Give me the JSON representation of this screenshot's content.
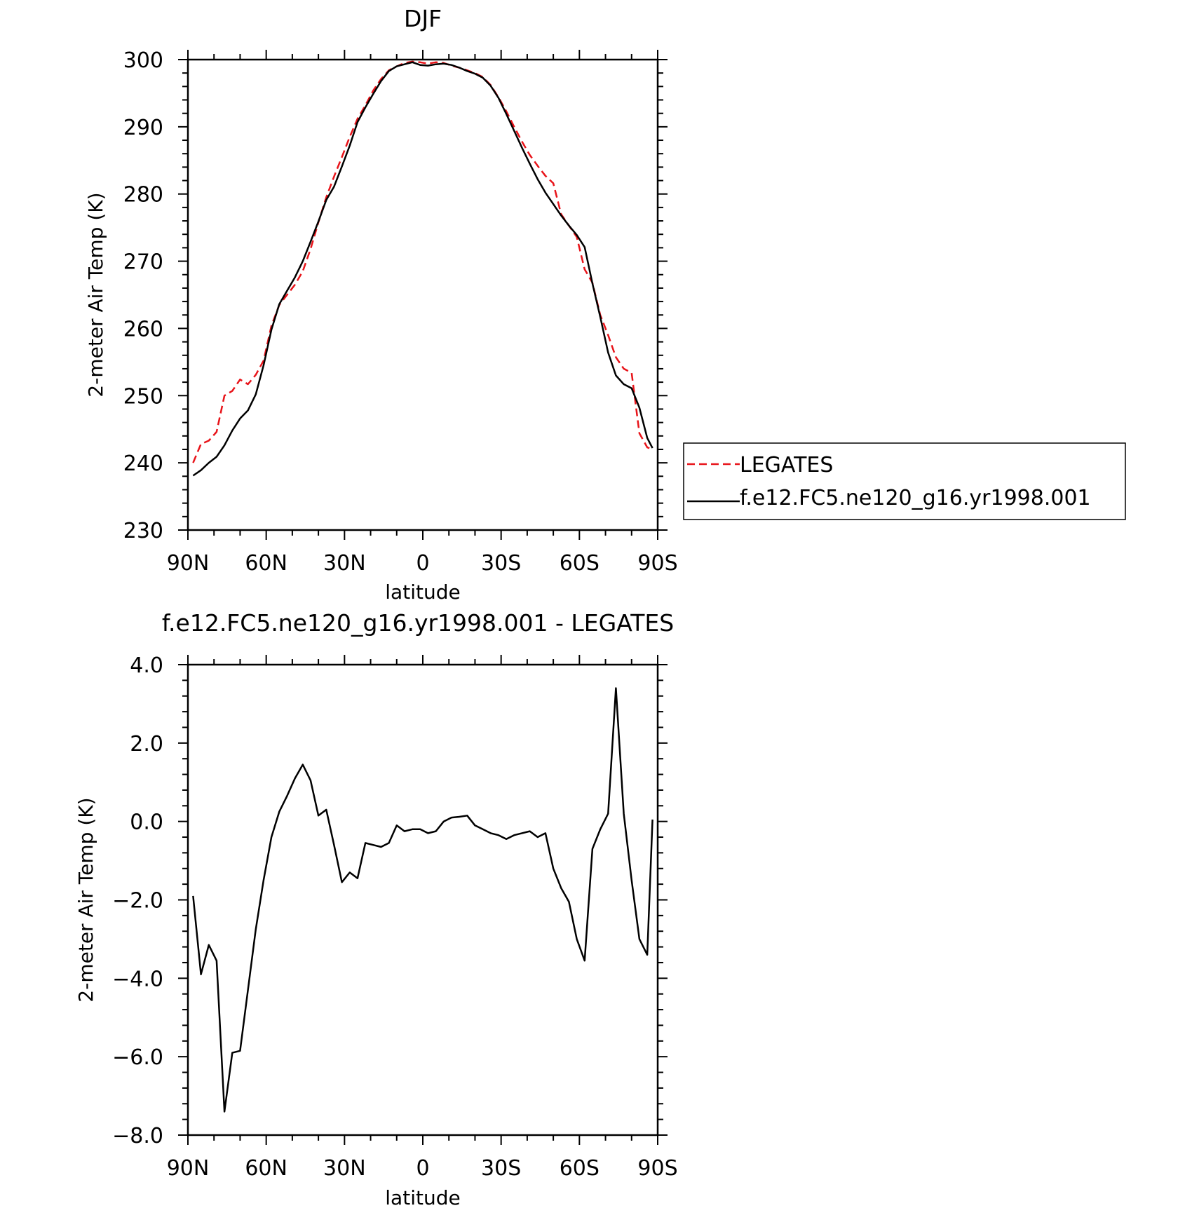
{
  "chart_data": [
    {
      "type": "line",
      "title": "DJF",
      "xlabel": "latitude",
      "ylabel": "2-meter Air Temp (K)",
      "x_ticks": [
        "90N",
        "60N",
        "30N",
        "0",
        "30S",
        "60S",
        "90S"
      ],
      "y_ticks": [
        "230",
        "240",
        "250",
        "260",
        "270",
        "280",
        "290",
        "300"
      ],
      "xlim": [
        90,
        -90
      ],
      "ylim": [
        230,
        300
      ],
      "grid": false,
      "legend_position": "right",
      "series": [
        {
          "name": "LEGATES",
          "color": "#e8141a",
          "dash": "dashed",
          "x": [
            88,
            85,
            82,
            79,
            76,
            73,
            70,
            67,
            64,
            61,
            58,
            55,
            52,
            49,
            46,
            43,
            40,
            37,
            34,
            31,
            28,
            25,
            22,
            19,
            16,
            13,
            10,
            7,
            4,
            1,
            -2,
            -5,
            -8,
            -11,
            -14,
            -17,
            -20,
            -23,
            -26,
            -29,
            -32,
            -35,
            -38,
            -41,
            -44,
            -47,
            -50,
            -53,
            -56,
            -59,
            -62,
            -65,
            -68,
            -71,
            -74,
            -77,
            -80,
            -83,
            -86,
            -88
          ],
          "y": [
            240.0,
            242.8,
            243.3,
            244.6,
            250.0,
            250.7,
            252.4,
            251.7,
            253.1,
            255.2,
            260.4,
            263.5,
            265.0,
            266.5,
            268.5,
            271.8,
            275.8,
            279.5,
            282.6,
            285.5,
            288.5,
            291.2,
            293.2,
            295.4,
            297.1,
            298.4,
            299.0,
            299.5,
            299.7,
            299.6,
            299.4,
            299.6,
            299.5,
            299.1,
            298.8,
            298.4,
            298.0,
            297.4,
            296.2,
            294.4,
            292.3,
            290.0,
            287.8,
            285.8,
            284.2,
            282.7,
            281.6,
            277.0,
            275.3,
            273.6,
            268.8,
            266.8,
            262.0,
            259.0,
            255.7,
            254.0,
            253.4,
            244.4,
            242.3,
            242.0
          ]
        },
        {
          "name": "f.e12.FC5.ne120_g16.yr1998.001",
          "color": "#000000",
          "dash": "solid",
          "x": [
            88,
            85,
            82,
            79,
            76,
            73,
            70,
            67,
            64,
            61,
            58,
            55,
            52,
            49,
            46,
            43,
            40,
            37,
            34,
            31,
            28,
            25,
            22,
            19,
            16,
            13,
            10,
            7,
            4,
            1,
            -2,
            -5,
            -8,
            -11,
            -14,
            -17,
            -20,
            -23,
            -26,
            -29,
            -32,
            -35,
            -38,
            -41,
            -44,
            -47,
            -50,
            -53,
            -56,
            -59,
            -62,
            -65,
            -68,
            -71,
            -74,
            -77,
            -80,
            -83,
            -86,
            -88
          ],
          "y": [
            238.1,
            238.9,
            240.0,
            240.9,
            242.6,
            244.8,
            246.6,
            247.8,
            250.2,
            254.5,
            259.8,
            263.6,
            265.6,
            267.6,
            270.0,
            272.9,
            275.9,
            279.1,
            281.1,
            284.1,
            287.2,
            290.7,
            292.9,
            294.9,
            296.8,
            298.3,
            299.0,
            299.3,
            299.6,
            299.2,
            299.1,
            299.3,
            299.4,
            299.2,
            298.8,
            298.3,
            297.9,
            297.3,
            296.1,
            294.3,
            291.9,
            289.4,
            286.9,
            284.5,
            282.2,
            280.2,
            278.5,
            276.8,
            275.3,
            273.9,
            272.1,
            266.7,
            261.7,
            256.4,
            253.0,
            251.7,
            251.1,
            248.2,
            243.7,
            242.2
          ]
        }
      ]
    },
    {
      "type": "line",
      "title": "f.e12.FC5.ne120_g16.yr1998.001 - LEGATES",
      "xlabel": "latitude",
      "ylabel": "2-meter Air Temp (K)",
      "x_ticks": [
        "90N",
        "60N",
        "30N",
        "0",
        "30S",
        "60S",
        "90S"
      ],
      "y_ticks": [
        "4.0",
        "2.0",
        "0.0",
        "−2.0",
        "−4.0",
        "−6.0",
        "−8.0"
      ],
      "xlim": [
        90,
        -90
      ],
      "ylim": [
        -8,
        4
      ],
      "grid": false,
      "series": [
        {
          "color": "#000000",
          "dash": "solid",
          "x": [
            88,
            85,
            82,
            79,
            76,
            73,
            70,
            67,
            64,
            61,
            58,
            55,
            52,
            49,
            46,
            43,
            40,
            37,
            34,
            31,
            28,
            25,
            22,
            19,
            16,
            13,
            10,
            7,
            4,
            1,
            -2,
            -5,
            -8,
            -11,
            -14,
            -17,
            -20,
            -23,
            -26,
            -29,
            -32,
            -35,
            -38,
            -41,
            -44,
            -47,
            -50,
            -53,
            -56,
            -59,
            -62,
            -65,
            -68,
            -71,
            -74,
            -77,
            -80,
            -83,
            -86,
            -88
          ],
          "y": [
            -1.9,
            -3.9,
            -3.15,
            -3.55,
            -7.4,
            -5.9,
            -5.85,
            -4.3,
            -2.75,
            -1.5,
            -0.4,
            0.25,
            0.65,
            1.1,
            1.45,
            1.05,
            0.15,
            0.3,
            -0.6,
            -1.55,
            -1.3,
            -1.45,
            -0.55,
            -0.6,
            -0.65,
            -0.55,
            -0.1,
            -0.25,
            -0.2,
            -0.2,
            -0.3,
            -0.25,
            0.0,
            0.1,
            0.12,
            0.15,
            -0.1,
            -0.2,
            -0.3,
            -0.35,
            -0.45,
            -0.35,
            -0.3,
            -0.25,
            -0.4,
            -0.3,
            -1.2,
            -1.7,
            -2.05,
            -3.0,
            -3.55,
            -0.7,
            -0.2,
            0.2,
            3.4,
            0.2,
            -1.5,
            -3.0,
            -3.4,
            0.05
          ]
        }
      ]
    }
  ],
  "legend": {
    "entries": [
      "LEGATES",
      "f.e12.FC5.ne120_g16.yr1998.001"
    ]
  }
}
